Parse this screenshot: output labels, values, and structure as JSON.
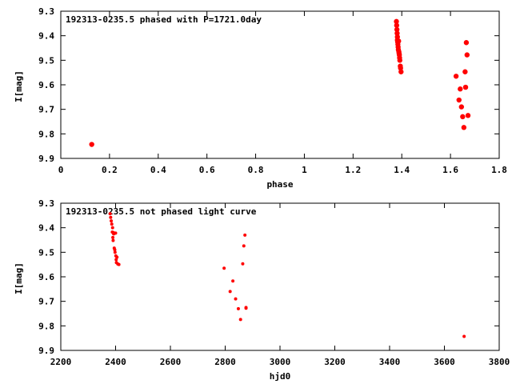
{
  "chart_data": [
    {
      "type": "scatter",
      "title": "192313-0235.5 phased with P=1721.0day",
      "xlabel": "phase",
      "ylabel": "I[mag]",
      "xlim": [
        0,
        1.8
      ],
      "ylim": [
        9.9,
        9.3
      ],
      "y_inverted": true,
      "grid": false,
      "marker": "filled-circle-large",
      "color": "#ff0000",
      "x_ticks": [
        "0",
        "0.2",
        "0.4",
        "0.6",
        "0.8",
        "1",
        "1.2",
        "1.4",
        "1.6",
        "1.8"
      ],
      "y_ticks": [
        "9.3",
        "9.4",
        "9.5",
        "9.6",
        "9.7",
        "9.8",
        "9.9"
      ],
      "series": [
        {
          "x": [
            0.127,
            1.378,
            1.379,
            1.38,
            1.381,
            1.382,
            1.382,
            1.383,
            1.384,
            1.385,
            1.386,
            1.387,
            1.388,
            1.389,
            1.39,
            1.391,
            1.392,
            1.394,
            1.395,
            1.397,
            1.623,
            1.635,
            1.64,
            1.645,
            1.65,
            1.655,
            1.66,
            1.662,
            1.665,
            1.668,
            1.672
          ],
          "y": [
            9.843,
            9.342,
            9.358,
            9.375,
            9.39,
            9.405,
            9.418,
            9.425,
            9.435,
            9.446,
            9.457,
            9.422,
            9.465,
            9.472,
            9.478,
            9.49,
            9.5,
            9.524,
            9.532,
            9.547,
            9.565,
            9.662,
            9.617,
            9.69,
            9.73,
            9.774,
            9.547,
            9.61,
            9.428,
            9.478,
            9.725
          ]
        }
      ]
    },
    {
      "type": "scatter",
      "title": "192313-0235.5 not phased light curve",
      "xlabel": "hjd0",
      "ylabel": "I[mag]",
      "xlim": [
        2200,
        3800
      ],
      "ylim": [
        9.9,
        9.3
      ],
      "y_inverted": true,
      "grid": false,
      "marker": "filled-circle-small",
      "color": "#ff0000",
      "x_ticks": [
        "2200",
        "2400",
        "2600",
        "2800",
        "3000",
        "3200",
        "3400",
        "3600",
        "3800"
      ],
      "y_ticks": [
        "9.3",
        "9.4",
        "9.5",
        "9.6",
        "9.7",
        "9.8",
        "9.9"
      ],
      "series": [
        {
          "x": [
            2380,
            2382,
            2384,
            2386,
            2388,
            2389,
            2390,
            2391,
            2392,
            2393,
            2395,
            2397,
            2398,
            2400,
            2401,
            2402,
            2403,
            2405,
            2408,
            2412,
            2796,
            2818,
            2828,
            2838,
            2848,
            2856,
            2864,
            2868,
            2872,
            2876,
            2876,
            3672
          ],
          "y": [
            9.343,
            9.358,
            9.372,
            9.385,
            9.418,
            9.4,
            9.44,
            9.452,
            9.42,
            9.425,
            9.483,
            9.49,
            9.5,
            9.422,
            9.515,
            9.53,
            9.542,
            9.52,
            9.548,
            9.55,
            9.565,
            9.66,
            9.617,
            9.69,
            9.73,
            9.774,
            9.547,
            9.474,
            9.43,
            9.725,
            9.728,
            9.843
          ]
        }
      ]
    }
  ]
}
